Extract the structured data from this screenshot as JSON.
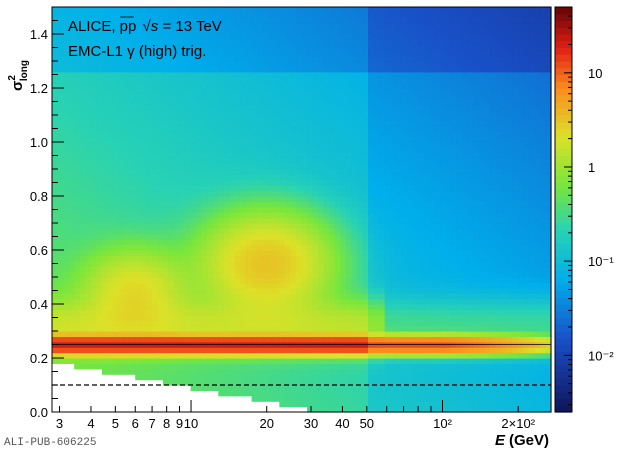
{
  "chart_data": {
    "type": "heatmap",
    "title": "",
    "xlabel": "E (GeV)",
    "xlabel_var": "E",
    "xlabel_unit": "(GeV)",
    "ylabel": "σ²long",
    "ylabel_symbol": "σ",
    "ylabel_sup": "2",
    "ylabel_sub": "long",
    "x_scale": "log",
    "xlim": [
      2.8,
      270
    ],
    "ylim": [
      0.0,
      1.5
    ],
    "z_scale": "log",
    "zlim": [
      0.0025,
      50
    ],
    "x_ticks": [
      {
        "value": 3,
        "label": "3"
      },
      {
        "value": 4,
        "label": "4"
      },
      {
        "value": 5,
        "label": "5"
      },
      {
        "value": 6,
        "label": "6"
      },
      {
        "value": 7,
        "label": "7"
      },
      {
        "value": 8,
        "label": "8"
      },
      {
        "value": 9,
        "label": "9"
      },
      {
        "value": 10,
        "label": "10"
      },
      {
        "value": 20,
        "label": "20"
      },
      {
        "value": 30,
        "label": "30"
      },
      {
        "value": 40,
        "label": "40"
      },
      {
        "value": 50,
        "label": "50"
      },
      {
        "value": 100,
        "label": "10²"
      },
      {
        "value": 200,
        "label": "2×10²"
      }
    ],
    "y_ticks": [
      {
        "value": 0.0,
        "label": "0.0"
      },
      {
        "value": 0.2,
        "label": "0.2"
      },
      {
        "value": 0.4,
        "label": "0.4"
      },
      {
        "value": 0.6,
        "label": "0.6"
      },
      {
        "value": 0.8,
        "label": "0.8"
      },
      {
        "value": 1.0,
        "label": "1.0"
      },
      {
        "value": 1.2,
        "label": "1.2"
      },
      {
        "value": 1.4,
        "label": "1.4"
      }
    ],
    "z_ticks": [
      {
        "value": 10,
        "label": "10"
      },
      {
        "value": 1,
        "label": "1"
      },
      {
        "value": 0.1,
        "label": "10⁻¹"
      },
      {
        "value": 0.01,
        "label": "10⁻²"
      }
    ],
    "annotations": [
      {
        "text": "ALICE, pp √s = 13 TeV",
        "before_sqrt": "ALICE, pp ",
        "sqrt_var": "s",
        "after_sqrt": " = 13 TeV"
      },
      {
        "text": "EMC-L1 γ (high) trig."
      }
    ],
    "reference_lines": [
      {
        "y": 0.25,
        "style": "solid"
      },
      {
        "y": 0.1,
        "style": "dashed"
      }
    ],
    "features": [
      {
        "name": "photon band",
        "y": 0.25,
        "x_range": [
          2.8,
          100
        ],
        "level": 20
      },
      {
        "name": "merged pi0 lobe 1",
        "x": 6,
        "y": 0.45,
        "level": 2
      },
      {
        "name": "merged pi0 lobe 2",
        "x": 20,
        "y": 0.55,
        "level": 3
      },
      {
        "name": "tail at high E",
        "x_range": [
          50,
          270
        ],
        "level": 0.1
      }
    ],
    "grid": false,
    "legend": "none"
  },
  "footer": {
    "pub_id": "ALI-PUB-606225"
  }
}
